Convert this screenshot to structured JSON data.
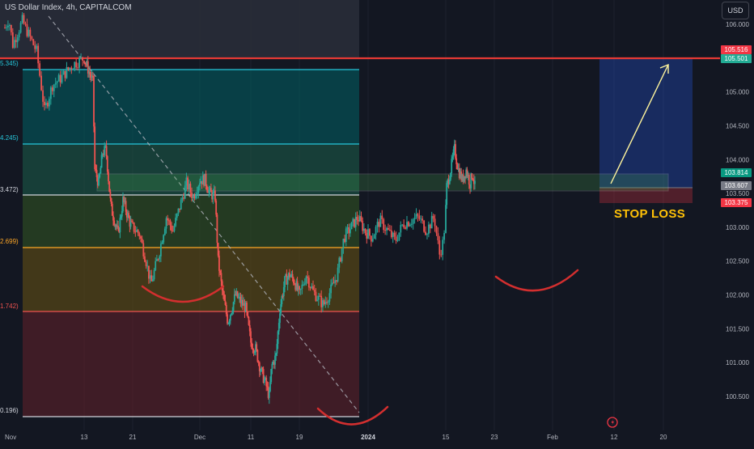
{
  "header": {
    "symbol_title": "US Dollar Index, 4h, CAPITALCOM",
    "currency": "USD"
  },
  "annotations": {
    "stop_loss": "STOP LOSS"
  },
  "price_tags": [
    {
      "label": "105.516",
      "color": "#f23645"
    },
    {
      "label": "105.501",
      "color": "#22ab94"
    },
    {
      "label": "103.814",
      "color": "#089981"
    },
    {
      "label": "103.607",
      "color": "#787b86"
    },
    {
      "label": "103.375",
      "color": "#f23645"
    }
  ],
  "fib_levels": [
    {
      "label": "5.345)",
      "value": 105.345,
      "color": "#26c6da"
    },
    {
      "label": "4.245)",
      "value": 104.245,
      "color": "#26c6da"
    },
    {
      "label": "3.472)",
      "value": 103.472,
      "color": "#d1d4dc"
    },
    {
      "label": "2.699)",
      "value": 102.699,
      "color": "#ffa726"
    },
    {
      "label": "1.742)",
      "value": 101.742,
      "color": "#ef5350"
    },
    {
      "label": "0.196)",
      "value": 100.196,
      "color": "#d1d4dc"
    }
  ],
  "icons": {
    "replay": "replay-icon"
  },
  "chart_data": {
    "type": "candlestick",
    "title": "US Dollar Index, 4h, CAPITALCOM",
    "ylim": [
      100.0,
      106.3
    ],
    "y_ticks": [
      "106.000",
      "105.500",
      "105.000",
      "104.500",
      "104.000",
      "103.500",
      "103.000",
      "102.500",
      "102.000",
      "101.500",
      "101.000",
      "100.500"
    ],
    "x_ticks": [
      "Nov",
      "13",
      "21",
      "Dec",
      "11",
      "19",
      "2024",
      "15",
      "23",
      "Feb",
      "12",
      "20"
    ],
    "price_path": [
      {
        "x": 0.0,
        "y": 105.95
      },
      {
        "x": 0.05,
        "y": 106.08
      },
      {
        "x": 0.1,
        "y": 105.7
      },
      {
        "x": 0.22,
        "y": 106.05
      },
      {
        "x": 0.4,
        "y": 105.6
      },
      {
        "x": 0.5,
        "y": 104.72
      },
      {
        "x": 0.6,
        "y": 105.1
      },
      {
        "x": 0.7,
        "y": 105.2
      },
      {
        "x": 0.85,
        "y": 105.4
      },
      {
        "x": 1.0,
        "y": 105.5
      },
      {
        "x": 1.1,
        "y": 105.3
      },
      {
        "x": 1.18,
        "y": 105.15
      },
      {
        "x": 1.22,
        "y": 103.85
      },
      {
        "x": 1.3,
        "y": 103.65
      },
      {
        "x": 1.38,
        "y": 104.1
      },
      {
        "x": 1.45,
        "y": 104.15
      },
      {
        "x": 1.55,
        "y": 103.3
      },
      {
        "x": 1.7,
        "y": 102.9
      },
      {
        "x": 1.8,
        "y": 103.4
      },
      {
        "x": 1.95,
        "y": 103.05
      },
      {
        "x": 2.1,
        "y": 102.9
      },
      {
        "x": 2.2,
        "y": 102.5
      },
      {
        "x": 2.27,
        "y": 102.15
      },
      {
        "x": 2.4,
        "y": 102.65
      },
      {
        "x": 2.5,
        "y": 103.15
      },
      {
        "x": 2.6,
        "y": 102.95
      },
      {
        "x": 2.7,
        "y": 103.3
      },
      {
        "x": 2.8,
        "y": 103.65
      },
      {
        "x": 2.9,
        "y": 103.45
      },
      {
        "x": 3.0,
        "y": 103.7
      },
      {
        "x": 3.1,
        "y": 103.7
      },
      {
        "x": 3.2,
        "y": 103.5
      },
      {
        "x": 3.3,
        "y": 103.45
      },
      {
        "x": 3.36,
        "y": 102.5
      },
      {
        "x": 3.45,
        "y": 102.0
      },
      {
        "x": 3.55,
        "y": 101.6
      },
      {
        "x": 3.7,
        "y": 102.0
      },
      {
        "x": 3.8,
        "y": 101.9
      },
      {
        "x": 3.9,
        "y": 101.8
      },
      {
        "x": 4.0,
        "y": 101.3
      },
      {
        "x": 4.1,
        "y": 101.2
      },
      {
        "x": 4.2,
        "y": 100.9
      },
      {
        "x": 4.3,
        "y": 100.7
      },
      {
        "x": 4.38,
        "y": 100.5
      },
      {
        "x": 4.43,
        "y": 100.95
      },
      {
        "x": 4.52,
        "y": 101.1
      },
      {
        "x": 4.6,
        "y": 101.8
      },
      {
        "x": 4.7,
        "y": 102.2
      },
      {
        "x": 4.8,
        "y": 102.3
      },
      {
        "x": 4.9,
        "y": 102.2
      },
      {
        "x": 5.0,
        "y": 102.0
      },
      {
        "x": 5.1,
        "y": 102.3
      },
      {
        "x": 5.2,
        "y": 102.05
      },
      {
        "x": 5.35,
        "y": 101.85
      },
      {
        "x": 5.45,
        "y": 102.05
      },
      {
        "x": 5.55,
        "y": 102.3
      },
      {
        "x": 5.65,
        "y": 102.85
      },
      {
        "x": 5.75,
        "y": 103.0
      },
      {
        "x": 5.85,
        "y": 103.15
      },
      {
        "x": 5.95,
        "y": 102.95
      },
      {
        "x": 6.05,
        "y": 102.85
      },
      {
        "x": 6.15,
        "y": 103.1
      },
      {
        "x": 6.25,
        "y": 102.95
      },
      {
        "x": 6.35,
        "y": 102.8
      },
      {
        "x": 6.45,
        "y": 103.05
      },
      {
        "x": 6.55,
        "y": 103.1
      },
      {
        "x": 6.65,
        "y": 103.15
      },
      {
        "x": 6.75,
        "y": 102.95
      },
      {
        "x": 6.85,
        "y": 103.15
      },
      {
        "x": 6.92,
        "y": 102.6
      },
      {
        "x": 6.97,
        "y": 102.8
      },
      {
        "x": 7.02,
        "y": 103.6
      },
      {
        "x": 7.1,
        "y": 103.85
      },
      {
        "x": 7.18,
        "y": 104.15
      },
      {
        "x": 7.26,
        "y": 103.85
      },
      {
        "x": 7.34,
        "y": 103.7
      },
      {
        "x": 7.42,
        "y": 103.85
      },
      {
        "x": 7.5,
        "y": 103.65
      },
      {
        "x": 7.55,
        "y": 103.8
      },
      {
        "x": 7.6,
        "y": 103.6
      }
    ]
  }
}
